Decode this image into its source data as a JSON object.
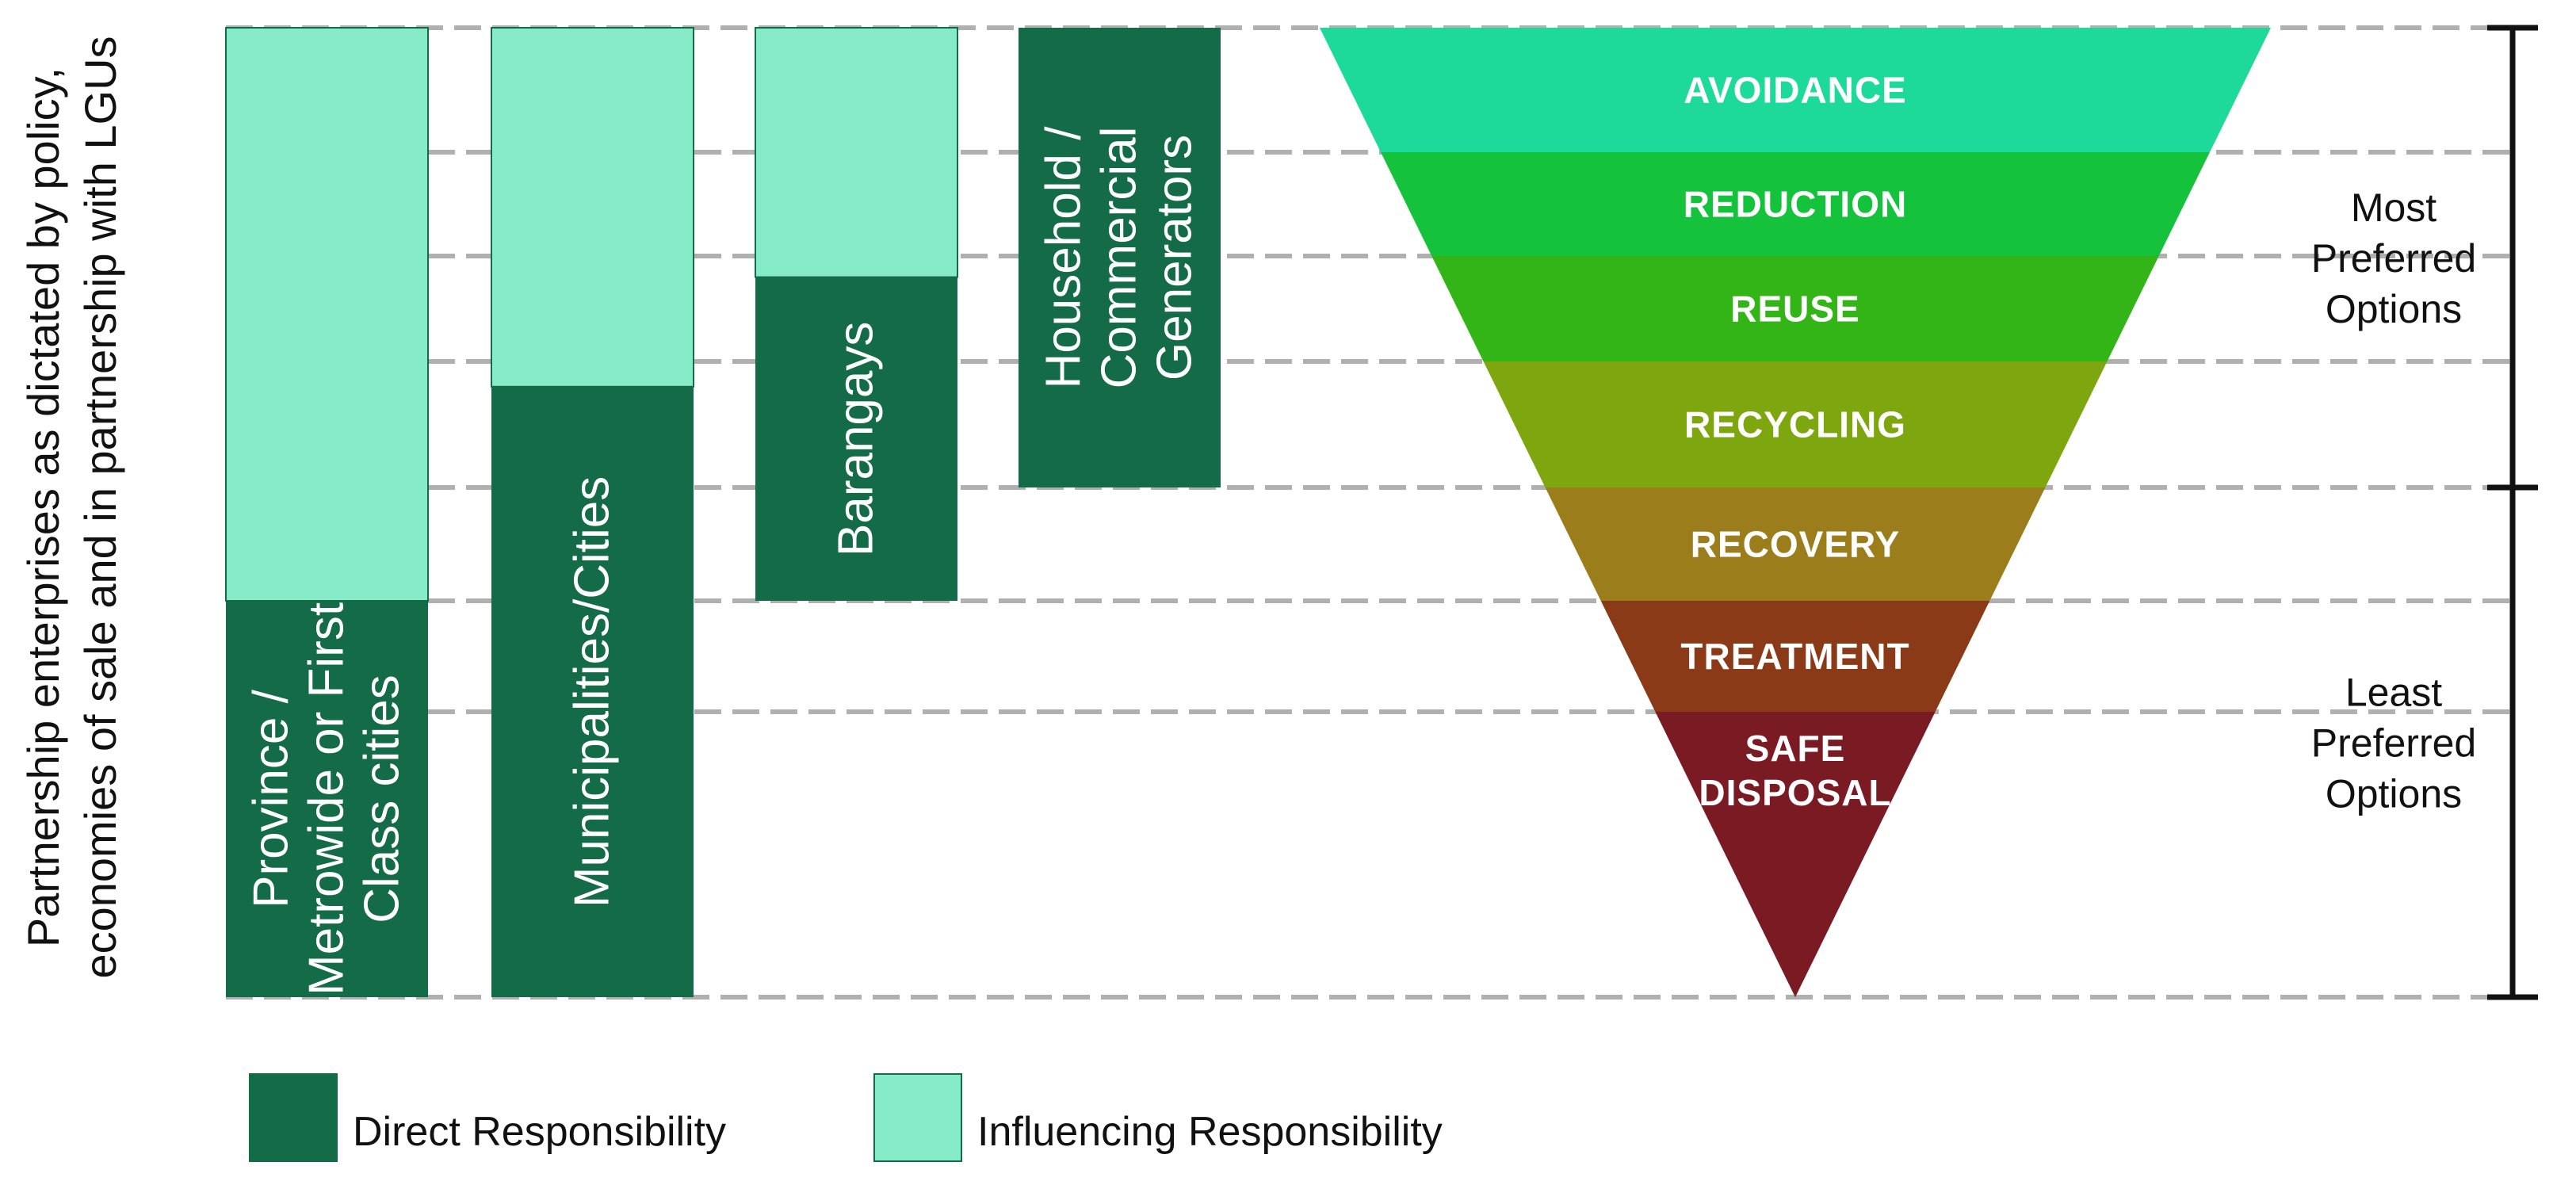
{
  "side_label": [
    "Partnership enterprises as dictated by policy,",
    "economies of sale and in partnership with LGUs"
  ],
  "columns": [
    {
      "label": [
        "Province /",
        "Metrowide or First",
        "Class cities"
      ],
      "direct_from_level": 5
    },
    {
      "label": [
        "Municipalities/Cities"
      ],
      "direct_from_level": 3.2
    },
    {
      "label": [
        "Barangays"
      ],
      "direct_from_level": 2.2
    },
    {
      "label": [
        "Household /",
        "Commercial",
        "Generators"
      ],
      "direct_from_level": 0
    }
  ],
  "hierarchy": {
    "levels": [
      {
        "name": [
          "AVOIDANCE"
        ],
        "color": "#1dd99a"
      },
      {
        "name": [
          "REDUCTION"
        ],
        "color": "#14c23c"
      },
      {
        "name": [
          "REUSE"
        ],
        "color": "#33b517"
      },
      {
        "name": [
          "RECYCLING"
        ],
        "color": "#7ea70f"
      },
      {
        "name": [
          "RECOVERY"
        ],
        "color": "#9b7d1c"
      },
      {
        "name": [
          "TREATMENT"
        ],
        "color": "#8a3a17"
      },
      {
        "name": [
          "SAFE",
          "DISPOSAL"
        ],
        "color": "#7a1a22"
      }
    ]
  },
  "preference_groups": [
    {
      "label": [
        "Most",
        "Preferred",
        "Options"
      ],
      "from_level": 0,
      "to_level": 4
    },
    {
      "label": [
        "Least",
        "Preferred",
        "Options"
      ],
      "from_level": 4,
      "to_level": 7
    }
  ],
  "legend": [
    {
      "label": "Direct Responsibility",
      "color": "#136b47"
    },
    {
      "label": "Influencing Responsibility",
      "color": "#85ebc8"
    }
  ],
  "colors": {
    "direct": "#136b47",
    "influencing": "#85ebc8",
    "guide": "#b0b0b0"
  }
}
